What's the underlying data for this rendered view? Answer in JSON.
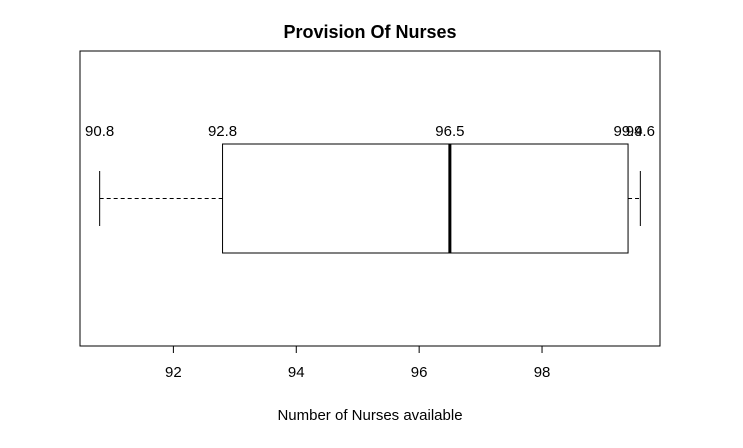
{
  "chart_data": {
    "type": "boxplot",
    "orientation": "horizontal",
    "title": "Provision Of Nurses",
    "xlabel": "Number of Nurses available",
    "ylabel": "",
    "xlim": [
      90.48,
      99.92
    ],
    "x_ticks": [
      92,
      94,
      96,
      98
    ],
    "grid": false,
    "stats": {
      "min": 90.8,
      "q1": 92.8,
      "median": 96.5,
      "q3": 99.4,
      "max": 99.6
    },
    "data_labels": [
      {
        "text": "90.8",
        "x": 90.8
      },
      {
        "text": "92.8",
        "x": 92.8
      },
      {
        "text": "96.5",
        "x": 96.5
      },
      {
        "text": "99.4",
        "x": 99.4
      },
      {
        "text": "99.6",
        "x": 99.6
      }
    ],
    "colors": {
      "box_fill": "#ffffff",
      "stroke": "#000000",
      "background": "#ffffff"
    }
  }
}
